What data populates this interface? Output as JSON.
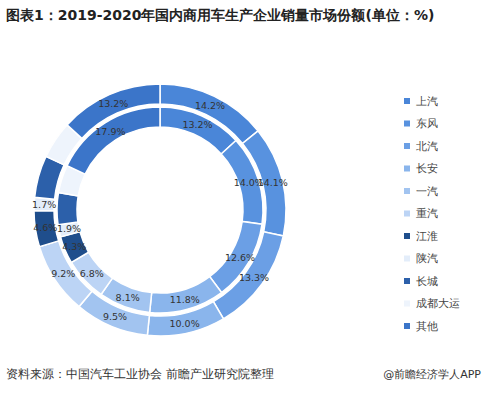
{
  "chart_data": {
    "type": "donut",
    "title": "图表1：2019-2020年国内商用车生产企业销量市场份额(单位：%)",
    "categories": [
      "上汽",
      "东风",
      "北汽",
      "长安",
      "一汽",
      "重汽",
      "江淮",
      "陕汽",
      "长城",
      "成都大运",
      "其他"
    ],
    "colors": [
      "#4a86d8",
      "#5892df",
      "#6b9fe5",
      "#8ab5ec",
      "#a2c4f0",
      "#bcd4f5",
      "#1f4e8c",
      "#e3edfa",
      "#2c60aa",
      "#eef4fc",
      "#3b75c9"
    ],
    "series": [
      {
        "values": [
          14.2,
          14.1,
          13.3,
          10.0,
          9.5,
          9.2,
          4.6,
          1.7,
          5.4,
          4.8,
          13.2
        ],
        "value_labels": [
          "14.2%",
          "14.1%",
          "13.3%",
          "10.0%",
          "9.5%",
          "9.2%",
          "4.6%",
          "1.7%",
          null,
          null,
          "13.2%"
        ]
      },
      {
        "values": [
          13.2,
          14.0,
          12.6,
          11.8,
          8.1,
          6.8,
          4.3,
          1.9,
          5.0,
          4.4,
          17.9
        ],
        "value_labels": [
          "13.2%",
          "14.0%",
          "12.6%",
          "11.8%",
          "8.1%",
          "6.8%",
          "4.3%",
          "1.9%",
          null,
          null,
          "17.9%"
        ]
      }
    ],
    "data_labels": true,
    "legend": "right",
    "source": "资料来源：中国汽车工业协会 前瞻产业研究院整理",
    "annotations": [
      "@前瞻经济学人APP"
    ]
  }
}
